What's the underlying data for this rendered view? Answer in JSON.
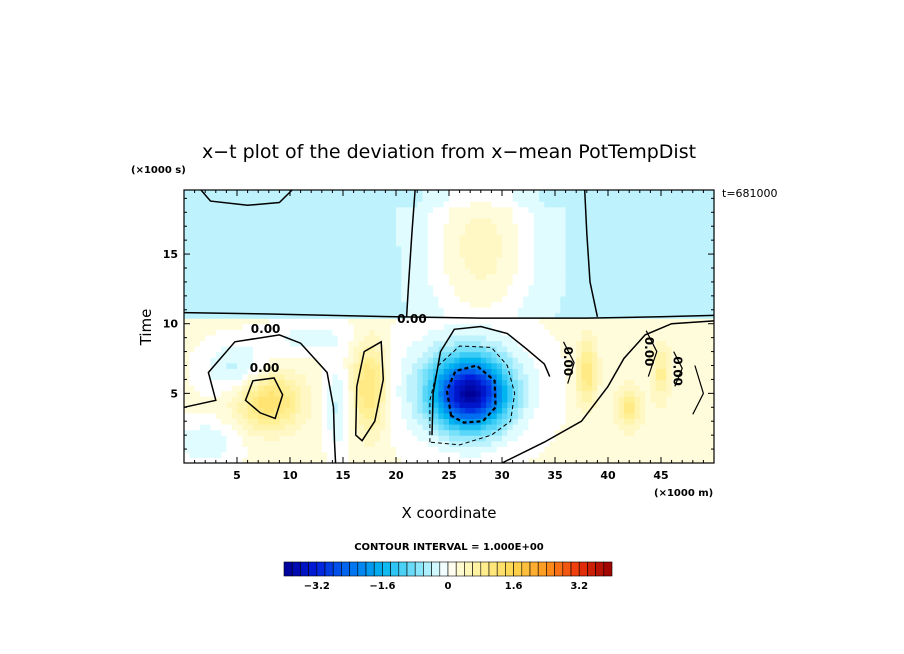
{
  "chart_data": {
    "type": "heatmap",
    "title": "x−t plot of the deviation from x−mean PotTempDist",
    "xlabel": "X coordinate",
    "ylabel": "Time",
    "x_unit": "(×1000 m)",
    "y_unit": "(×1000 s)",
    "time_stamp": "t=681000",
    "xlim": [
      0,
      50
    ],
    "ylim": [
      0,
      19.6
    ],
    "x_ticks": [
      5,
      10,
      15,
      20,
      25,
      30,
      35,
      40,
      45
    ],
    "y_ticks": [
      5,
      10,
      15
    ],
    "x_tick_labels": [
      "5",
      "10",
      "15",
      "20",
      "25",
      "30",
      "35",
      "40",
      "45"
    ],
    "y_tick_labels": [
      "5",
      "10",
      "15"
    ],
    "contour_interval_text": "CONTOUR INTERVAL = 1.000E+00",
    "contour_labels": [
      {
        "x": 7.7,
        "t": 9.6,
        "text": "0.00"
      },
      {
        "x": 7.6,
        "t": 6.8,
        "text": "0.00"
      },
      {
        "x": 21.5,
        "t": 10.3,
        "text": "0.00"
      },
      {
        "x": 36.2,
        "t": 7.3,
        "text": "0.00"
      },
      {
        "x": 43.8,
        "t": 8.0,
        "text": "0.00"
      },
      {
        "x": 46.5,
        "t": 6.6,
        "text": "0.00"
      }
    ],
    "colorbar": {
      "min": -4.0,
      "max": 4.0,
      "step": 0.2,
      "tick_values": [
        -3.2,
        -1.6,
        0,
        1.6,
        3.2
      ],
      "tick_labels": [
        "−3.2",
        "−1.6",
        "0",
        "1.6",
        "3.2"
      ]
    },
    "features": [
      {
        "kind": "cold_core",
        "x": 27,
        "t": 5.0,
        "min_value": -3.0
      },
      {
        "kind": "warm_band",
        "x": 28,
        "t": 15.5,
        "max_value": 0.6
      },
      {
        "kind": "warm_patch",
        "x": 8,
        "t": 4.5,
        "max_value": 1.2
      },
      {
        "kind": "warm_streak",
        "x": 17.5,
        "t": 5.5,
        "max_value": 1.2
      }
    ]
  }
}
